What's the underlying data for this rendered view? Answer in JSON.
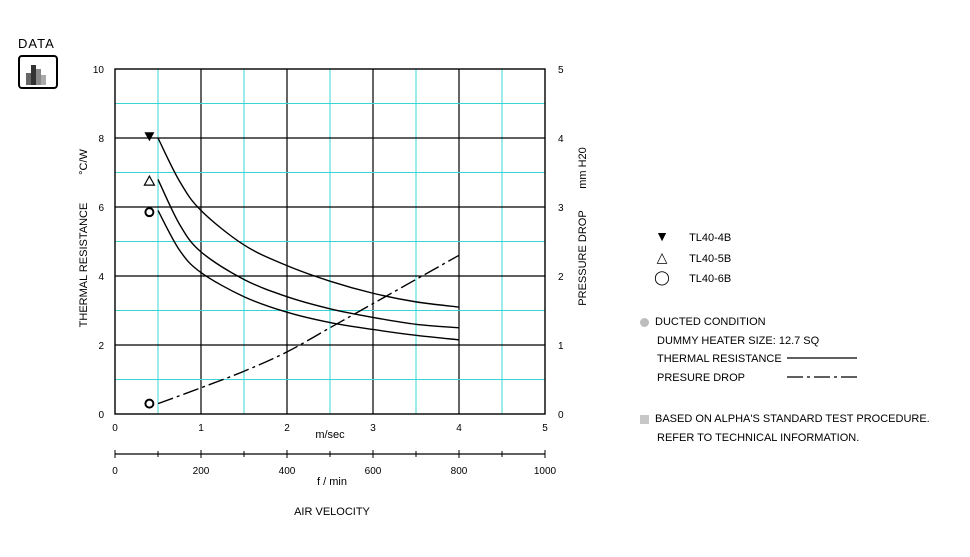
{
  "header": {
    "label": "DATA",
    "icon": "bar-chart-icon"
  },
  "chart_data": {
    "type": "line",
    "title": "",
    "x_axis_primary": {
      "label": "m/sec",
      "range": [
        0,
        5
      ],
      "ticks": [
        "0",
        "1",
        "2",
        "3",
        "4",
        "5"
      ]
    },
    "x_axis_secondary": {
      "label": "f / min",
      "range": [
        0,
        1000
      ],
      "ticks": [
        "0",
        "200",
        "400",
        "600",
        "800",
        "1000"
      ]
    },
    "x_axis_caption": "AIR VELOCITY",
    "y_axis_left": {
      "label": "THERMAL RESISTANCE",
      "unit": "°C/W",
      "range": [
        0,
        10
      ],
      "ticks": [
        "0",
        "2",
        "4",
        "6",
        "8",
        "10"
      ]
    },
    "y_axis_right": {
      "label": "PRESSURE DROP",
      "unit": "mm H20",
      "range": [
        0,
        5
      ],
      "ticks": [
        "0",
        "1",
        "2",
        "3",
        "4",
        "5"
      ]
    },
    "grid": true,
    "series": [
      {
        "name": "TL40-4B",
        "axis": "left",
        "style": "solid",
        "marker": "filled-triangle-down",
        "x": [
          0.5,
          0.75,
          1.0,
          1.5,
          2.0,
          2.5,
          3.0,
          3.5,
          4.0
        ],
        "y": [
          8.0,
          6.75,
          5.9,
          4.9,
          4.3,
          3.85,
          3.5,
          3.25,
          3.1
        ]
      },
      {
        "name": "TL40-5B",
        "axis": "left",
        "style": "solid",
        "marker": "open-triangle-up",
        "x": [
          0.5,
          0.75,
          1.0,
          1.5,
          2.0,
          2.5,
          3.0,
          3.5,
          4.0
        ],
        "y": [
          6.8,
          5.5,
          4.7,
          3.9,
          3.4,
          3.05,
          2.8,
          2.6,
          2.5
        ]
      },
      {
        "name": "TL40-6B",
        "axis": "left",
        "style": "solid",
        "marker": "open-circle",
        "x": [
          0.5,
          0.75,
          1.0,
          1.5,
          2.0,
          2.5,
          3.0,
          3.5,
          4.0
        ],
        "y": [
          5.9,
          4.75,
          4.1,
          3.4,
          2.95,
          2.65,
          2.45,
          2.28,
          2.15
        ]
      },
      {
        "name": "PRESURE DROP",
        "axis": "right",
        "style": "dash-dot",
        "x": [
          0.5,
          1.0,
          1.5,
          2.0,
          2.5,
          3.0,
          3.5,
          4.0
        ],
        "y": [
          0.15,
          0.38,
          0.62,
          0.9,
          1.25,
          1.6,
          1.95,
          2.3
        ]
      }
    ],
    "markers": [
      {
        "symbol": "filled-triangle-down",
        "x": 0.4,
        "y": 8.05
      },
      {
        "symbol": "open-triangle-up",
        "x": 0.4,
        "y": 6.75
      },
      {
        "symbol": "open-circle",
        "x": 0.4,
        "y": 5.85
      },
      {
        "symbol": "open-circle",
        "x": 0.4,
        "y": 0.3
      }
    ]
  },
  "legend": {
    "items": [
      {
        "symbol": "▼",
        "label": "TL40-4B"
      },
      {
        "symbol": "△",
        "label": "TL40-5B"
      },
      {
        "symbol": "◯",
        "label": "TL40-6B"
      }
    ]
  },
  "notes": {
    "condition": "DUCTED CONDITION",
    "heater": "DUMMY HEATER SIZE: 12.7 SQ",
    "thermal_label": "THERMAL RESISTANCE",
    "pressure_label": "PRESURE DROP",
    "procedure_1": "BASED ON ALPHA'S STANDARD TEST PROCEDURE.",
    "procedure_2": "REFER TO TECHNICAL INFORMATION."
  },
  "colors": {
    "grid_minor": "#39d5d5",
    "grid_major": "#000000",
    "line": "#000000"
  }
}
